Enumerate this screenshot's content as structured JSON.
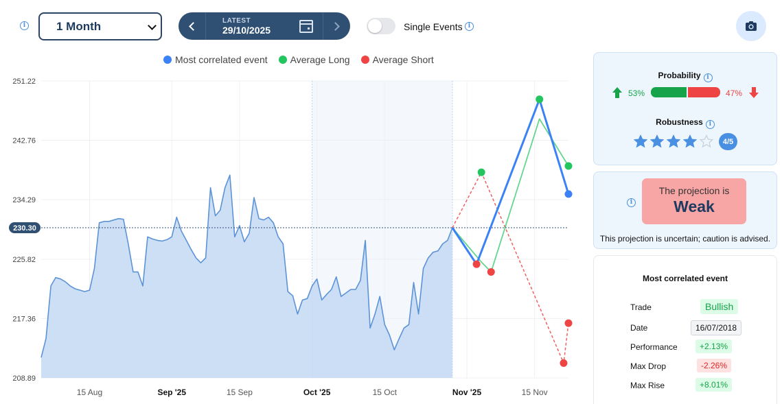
{
  "controls": {
    "period": "1 Month",
    "date_label": "LATEST",
    "date_value": "29/10/2025",
    "toggle_label": "Single Events"
  },
  "legend": [
    {
      "label": "Most correlated event",
      "color": "#3b82f6"
    },
    {
      "label": "Average Long",
      "color": "#22c55e"
    },
    {
      "label": "Average Short",
      "color": "#ef4444"
    }
  ],
  "chart_data": {
    "type": "line",
    "y_ticks": [
      "251.22",
      "242.76",
      "234.29",
      "225.82",
      "217.36",
      "208.89"
    ],
    "ylim": [
      208.89,
      251.22
    ],
    "x_ticks": [
      {
        "label": "15 Aug",
        "date": "2025-08-15",
        "bold": false
      },
      {
        "label": "Sep '25",
        "date": "2025-09-01",
        "bold": true
      },
      {
        "label": "15 Sep",
        "date": "2025-09-15",
        "bold": false
      },
      {
        "label": "Oct '25",
        "date": "2025-10-01",
        "bold": true
      },
      {
        "label": "15 Oct",
        "date": "2025-10-15",
        "bold": false
      },
      {
        "label": "Nov '25",
        "date": "2025-11-01",
        "bold": true
      },
      {
        "label": "15 Nov",
        "date": "2025-11-15",
        "bold": false
      }
    ],
    "xlim": [
      "2025-08-05",
      "2025-11-22"
    ],
    "current_value": "230.30",
    "highlight_range": [
      "2025-09-30",
      "2025-10-29"
    ],
    "price": [
      [
        "2025-08-05",
        211.8
      ],
      [
        "2025-08-06",
        214.5
      ],
      [
        "2025-08-07",
        222.0
      ],
      [
        "2025-08-08",
        223.2
      ],
      [
        "2025-08-09",
        223.0
      ],
      [
        "2025-08-10",
        222.6
      ],
      [
        "2025-08-11",
        222.0
      ],
      [
        "2025-08-12",
        221.6
      ],
      [
        "2025-08-13",
        221.4
      ],
      [
        "2025-08-14",
        221.2
      ],
      [
        "2025-08-15",
        221.4
      ],
      [
        "2025-08-16",
        224.5
      ],
      [
        "2025-08-17",
        231.0
      ],
      [
        "2025-08-18",
        231.2
      ],
      [
        "2025-08-19",
        231.2
      ],
      [
        "2025-08-20",
        231.4
      ],
      [
        "2025-08-21",
        231.6
      ],
      [
        "2025-08-22",
        231.5
      ],
      [
        "2025-08-23",
        228.0
      ],
      [
        "2025-08-24",
        224.0
      ],
      [
        "2025-08-25",
        224.0
      ],
      [
        "2025-08-26",
        222.0
      ],
      [
        "2025-08-27",
        229.0
      ],
      [
        "2025-08-28",
        228.7
      ],
      [
        "2025-08-29",
        228.5
      ],
      [
        "2025-08-30",
        228.4
      ],
      [
        "2025-08-31",
        228.6
      ],
      [
        "2025-09-01",
        229.0
      ],
      [
        "2025-09-02",
        231.8
      ],
      [
        "2025-09-03",
        229.8
      ],
      [
        "2025-09-04",
        228.5
      ],
      [
        "2025-09-05",
        227.2
      ],
      [
        "2025-09-06",
        226.0
      ],
      [
        "2025-09-07",
        225.3
      ],
      [
        "2025-09-08",
        226.0
      ],
      [
        "2025-09-09",
        236.0
      ],
      [
        "2025-09-10",
        232.0
      ],
      [
        "2025-09-11",
        232.8
      ],
      [
        "2025-09-12",
        236.0
      ],
      [
        "2025-09-13",
        237.8
      ],
      [
        "2025-09-14",
        229.0
      ],
      [
        "2025-09-15",
        230.6
      ],
      [
        "2025-09-16",
        228.3
      ],
      [
        "2025-09-17",
        229.5
      ],
      [
        "2025-09-18",
        234.6
      ],
      [
        "2025-09-19",
        231.6
      ],
      [
        "2025-09-20",
        231.4
      ],
      [
        "2025-09-21",
        231.8
      ],
      [
        "2025-09-22",
        231.0
      ],
      [
        "2025-09-23",
        229.0
      ],
      [
        "2025-09-24",
        228.0
      ],
      [
        "2025-09-25",
        221.2
      ],
      [
        "2025-09-26",
        220.6
      ],
      [
        "2025-09-27",
        218.0
      ],
      [
        "2025-09-28",
        220.0
      ],
      [
        "2025-09-29",
        220.2
      ],
      [
        "2025-09-30",
        222.0
      ],
      [
        "2025-10-01",
        223.0
      ],
      [
        "2025-10-02",
        220.0
      ],
      [
        "2025-10-03",
        220.8
      ],
      [
        "2025-10-04",
        221.5
      ],
      [
        "2025-10-05",
        223.3
      ],
      [
        "2025-10-06",
        220.5
      ],
      [
        "2025-10-07",
        221.0
      ],
      [
        "2025-10-08",
        221.5
      ],
      [
        "2025-10-09",
        221.5
      ],
      [
        "2025-10-10",
        222.8
      ],
      [
        "2025-10-11",
        228.5
      ],
      [
        "2025-10-12",
        216.0
      ],
      [
        "2025-10-13",
        218.0
      ],
      [
        "2025-10-14",
        220.5
      ],
      [
        "2025-10-15",
        216.5
      ],
      [
        "2025-10-16",
        215.0
      ],
      [
        "2025-10-17",
        212.9
      ],
      [
        "2025-10-18",
        214.5
      ],
      [
        "2025-10-19",
        216.0
      ],
      [
        "2025-10-20",
        216.5
      ],
      [
        "2025-10-21",
        222.5
      ],
      [
        "2025-10-22",
        218.0
      ],
      [
        "2025-10-23",
        224.5
      ],
      [
        "2025-10-24",
        226.0
      ],
      [
        "2025-10-25",
        226.8
      ],
      [
        "2025-10-26",
        227.0
      ],
      [
        "2025-10-27",
        228.0
      ],
      [
        "2025-10-28",
        228.5
      ],
      [
        "2025-10-29",
        230.3
      ]
    ],
    "series": [
      {
        "name": "Most correlated event",
        "color": "#3b82f6",
        "style": "solid",
        "points": [
          [
            "2025-10-29",
            230.3
          ],
          [
            "2025-11-03",
            225.1
          ],
          [
            "2025-11-16",
            248.6
          ],
          [
            "2025-11-22",
            235.1
          ]
        ]
      },
      {
        "name": "Average Long",
        "color": "#22c55e",
        "style": "solid",
        "points": [
          [
            "2025-10-29",
            230.3
          ],
          [
            "2025-11-04",
            225.4
          ],
          [
            "2025-11-06",
            224.0
          ],
          [
            "2025-11-16",
            245.8
          ],
          [
            "2025-11-22",
            239.1
          ]
        ]
      },
      {
        "name": "Average Short",
        "color": "#ef4444",
        "style": "dashed",
        "points": [
          [
            "2025-10-29",
            230.3
          ],
          [
            "2025-11-04",
            238.2
          ],
          [
            "2025-11-21",
            211.0
          ],
          [
            "2025-11-22",
            216.7
          ]
        ]
      }
    ],
    "markers": [
      {
        "series": "Average Long",
        "color": "#22c55e",
        "points": [
          [
            "2025-11-04",
            238.2
          ],
          [
            "2025-11-16",
            248.6
          ],
          [
            "2025-11-22",
            239.1
          ]
        ]
      },
      {
        "series": "Average Short",
        "color": "#ef4444",
        "points": [
          [
            "2025-11-03",
            225.1
          ],
          [
            "2025-11-06",
            224.0
          ],
          [
            "2025-11-21",
            211.0
          ],
          [
            "2025-11-22",
            216.7
          ]
        ]
      },
      {
        "series": "Most correlated event",
        "color": "#3b82f6",
        "points": [
          [
            "2025-11-22",
            235.1
          ]
        ]
      }
    ]
  },
  "probability": {
    "title": "Probability",
    "bull_pct": "53%",
    "bear_pct": "47%",
    "bull_fraction": 0.53
  },
  "robustness": {
    "title": "Robustness",
    "score": 4,
    "max": 5,
    "badge": "4/5"
  },
  "projection": {
    "line1": "The projection is",
    "line2": "Weak",
    "note": "This projection is uncertain; caution is advised."
  },
  "event": {
    "title": "Most correlated event",
    "rows": [
      {
        "label": "Trade",
        "value": "Bullish",
        "kind": "bull"
      },
      {
        "label": "Date",
        "value": "16/07/2018",
        "kind": "date"
      },
      {
        "label": "Performance",
        "value": "+2.13%",
        "kind": "pos"
      },
      {
        "label": "Max Drop",
        "value": "-2.26%",
        "kind": "neg"
      },
      {
        "label": "Max Rise",
        "value": "+8.01%",
        "kind": "pos"
      }
    ]
  }
}
